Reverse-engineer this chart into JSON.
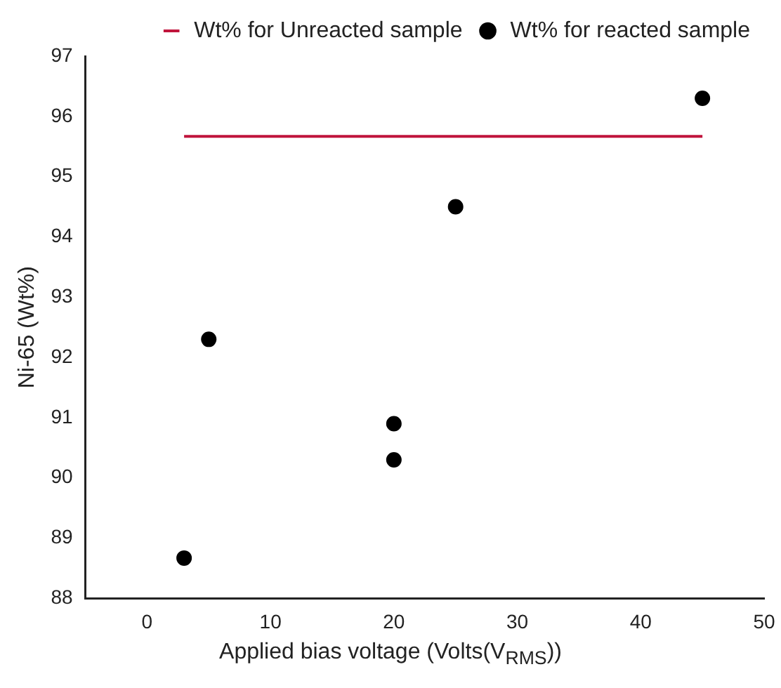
{
  "chart_data": {
    "type": "scatter",
    "xlabel": "Applied bias voltage (Volts(V$_{RMS}$))",
    "ylabel": "Ni-65 (Wt%)",
    "xlim": [
      -5,
      50
    ],
    "xticks": [
      0,
      10,
      20,
      30,
      40,
      50
    ],
    "ylim": [
      88,
      97
    ],
    "yticks": [
      88,
      89,
      90,
      91,
      92,
      93,
      94,
      95,
      96,
      97
    ],
    "grid": false,
    "legend": "top right",
    "marker": "circle",
    "series": [
      {
        "name": "Wt% for Unreacted sample",
        "type": "line",
        "color": "#c0143c",
        "x": [
          3,
          45
        ],
        "values": [
          95.67,
          95.67
        ],
        "marker": "none"
      },
      {
        "name": "Wt% for reacted sample",
        "color": "#000000",
        "x": [
          3,
          5,
          20,
          20,
          25,
          45
        ],
        "values": [
          88.67,
          92.3,
          90.9,
          90.3,
          94.5,
          96.3
        ]
      }
    ]
  }
}
